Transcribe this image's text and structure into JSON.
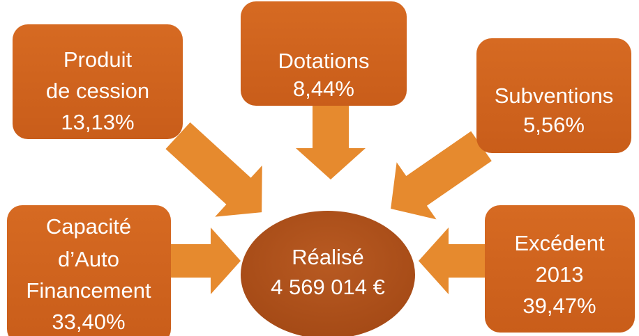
{
  "center": {
    "lines": [
      "Réalisé",
      "4 569 014 €"
    ]
  },
  "nodes": [
    {
      "lines": [
        "Produit",
        "de cession",
        "13,13%"
      ]
    },
    {
      "lines": [
        "Dotations",
        "8,44%"
      ]
    },
    {
      "lines": [
        "Subventions",
        "5,56%"
      ]
    },
    {
      "lines": [
        "Capacité",
        "d’Auto",
        "Financement",
        "33,40%"
      ]
    },
    {
      "lines": [
        "Excédent",
        "2013",
        "39,47%"
      ]
    }
  ]
}
